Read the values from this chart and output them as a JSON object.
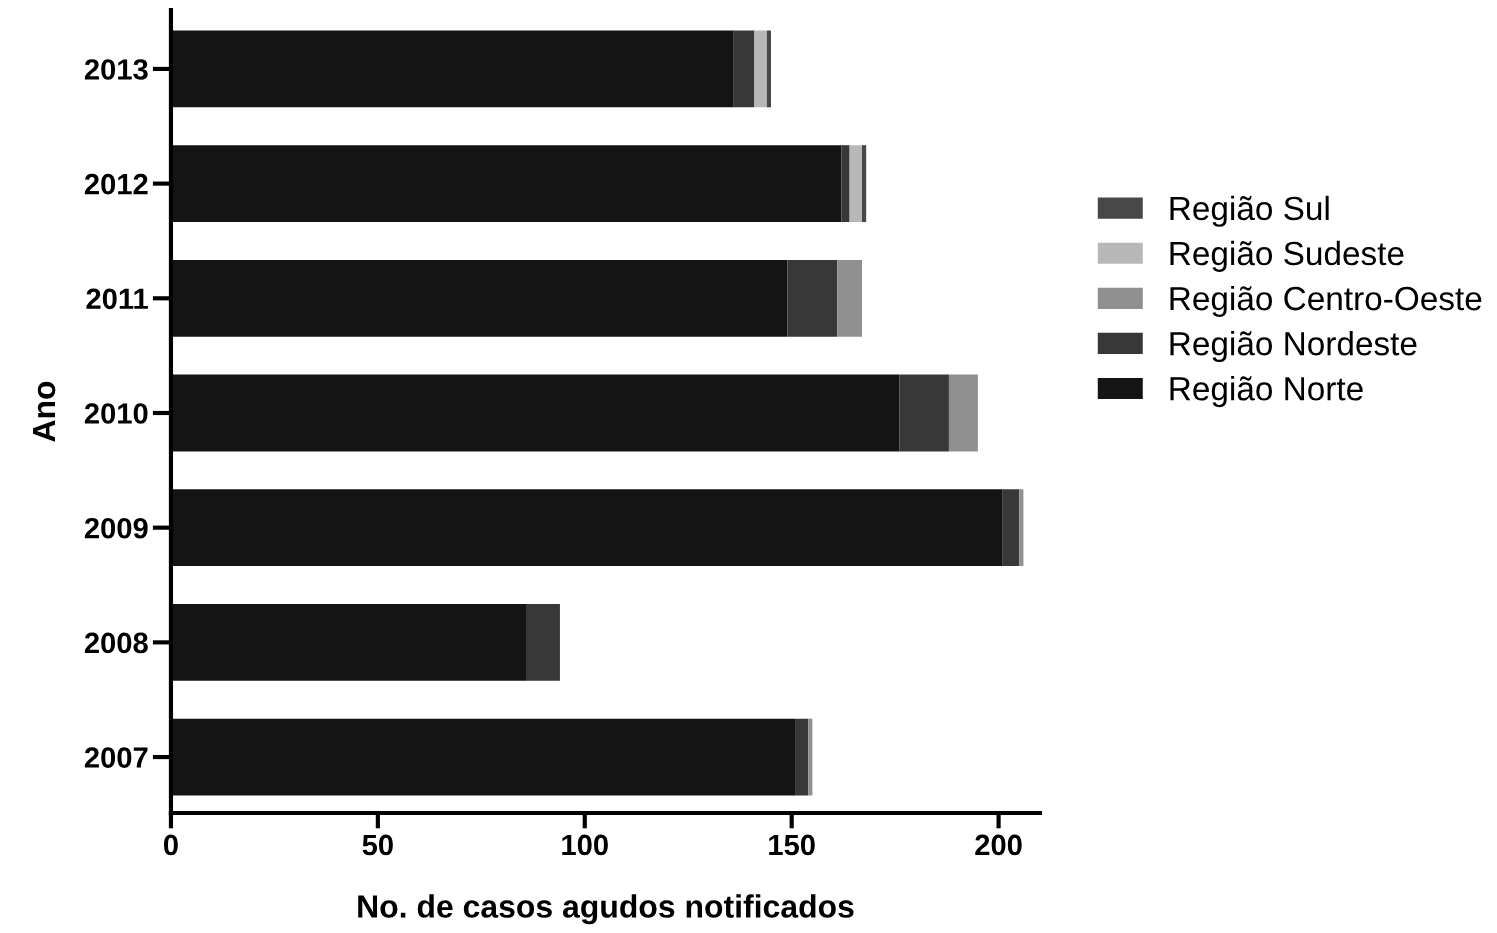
{
  "chart_data": {
    "type": "bar",
    "orientation": "horizontal",
    "stacked": true,
    "xlabel": "No. de casos agudos notificados",
    "ylabel": "Ano",
    "categories": [
      "2013",
      "2012",
      "2011",
      "2010",
      "2009",
      "2008",
      "2007"
    ],
    "series": [
      {
        "name": "Região Norte",
        "color": "#141414",
        "values": [
          136,
          162,
          149,
          176,
          201,
          86,
          151
        ]
      },
      {
        "name": "Região Nordeste",
        "color": "#383838",
        "values": [
          5,
          2,
          12,
          12,
          4,
          8,
          3
        ]
      },
      {
        "name": "Região Centro-Oeste",
        "color": "#909090",
        "values": [
          0,
          0,
          6,
          7,
          1,
          0,
          1
        ]
      },
      {
        "name": "Região Sudeste",
        "color": "#b8b8b8",
        "values": [
          3,
          3,
          0,
          0,
          0,
          0,
          0
        ]
      },
      {
        "name": "Região Sul",
        "color": "#484848",
        "values": [
          1,
          1,
          0,
          0,
          0,
          0,
          0
        ]
      }
    ],
    "xlim": [
      0,
      210
    ],
    "xticks": [
      0,
      50,
      100,
      150,
      200
    ],
    "legend": "right"
  }
}
